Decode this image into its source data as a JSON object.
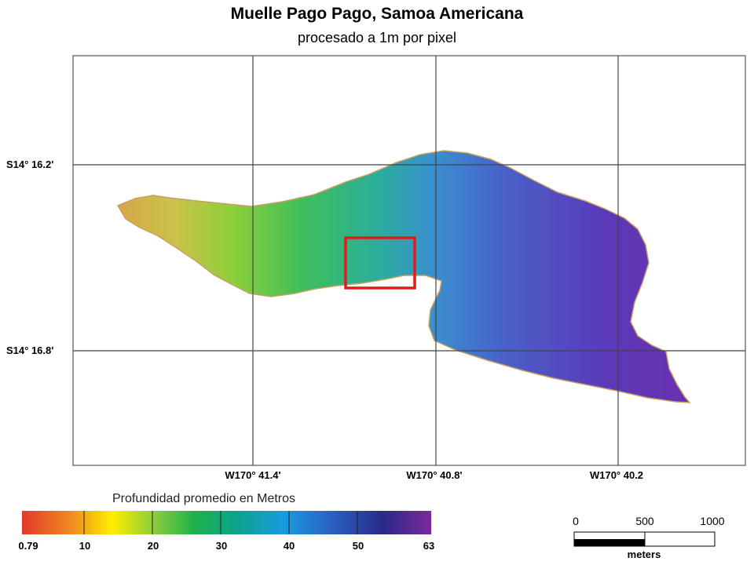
{
  "map": {
    "title": "Muelle Pago Pago, Samoa Americana",
    "subtitle": "procesado a 1m por pixel",
    "latitude_labels": [
      "S14° 16.2'",
      "S14° 16.8'"
    ],
    "longitude_labels": [
      "W170° 41.4'",
      "W170° 40.8'",
      "W170° 40.2"
    ],
    "highlight_color": "#e01b1b"
  },
  "legend": {
    "title": "Profundidad promedio en Metros",
    "tick_labels": [
      "0.79",
      "10",
      "20",
      "30",
      "40",
      "50",
      "63"
    ],
    "colors": [
      "#e03a2a",
      "#f0a020",
      "#ffee00",
      "#8ecf3a",
      "#1fb14a",
      "#0aa38a",
      "#1a9be0",
      "#2a5fc0",
      "#2a2a8a",
      "#7a2a9a"
    ]
  },
  "scale_bar": {
    "labels": [
      "0",
      "500",
      "1000"
    ],
    "unit": "meters"
  }
}
